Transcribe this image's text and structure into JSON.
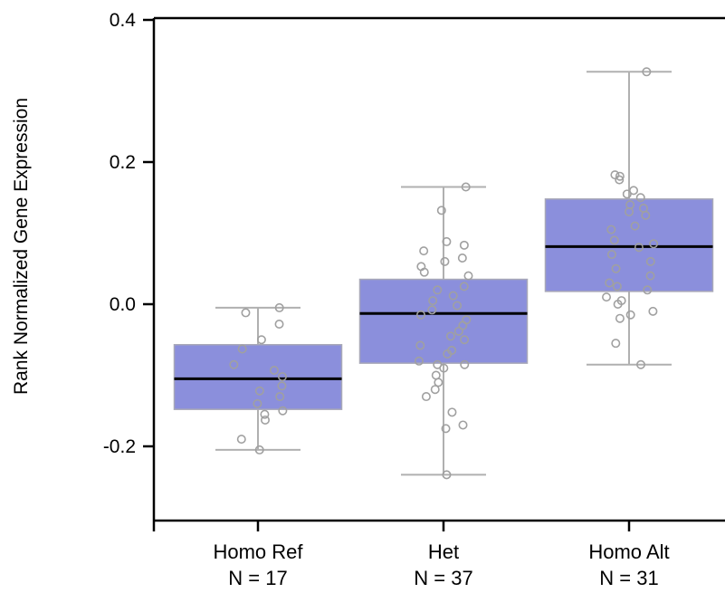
{
  "chart_data": {
    "type": "box",
    "ylabel": "Rank Normalized Gene Expression",
    "xlabel": "",
    "ylim": [
      -0.3,
      0.4
    ],
    "yticks": [
      -0.2,
      0.0,
      0.2,
      0.4
    ],
    "ytick_labels": [
      "-0.2",
      "0.0",
      "0.2",
      "0.4"
    ],
    "grid": false,
    "box_color": "#8b8fdc",
    "box_edge_color": "#a8a8b8",
    "median_color": "#000000",
    "whisker_color": "#b0b0b0",
    "point_color": "#a0a0a0",
    "groups": [
      {
        "name": "Homo Ref",
        "n_label": "N = 17",
        "whisker_low": -0.205,
        "q1": -0.148,
        "median": -0.105,
        "q3": -0.057,
        "whisker_high": -0.005,
        "points": [
          -0.005,
          -0.012,
          -0.028,
          -0.05,
          -0.063,
          -0.085,
          -0.093,
          -0.102,
          -0.115,
          -0.122,
          -0.13,
          -0.14,
          -0.15,
          -0.155,
          -0.163,
          -0.19,
          -0.205
        ]
      },
      {
        "name": "Het",
        "n_label": "N = 37",
        "whisker_low": -0.24,
        "q1": -0.083,
        "median": -0.013,
        "q3": 0.035,
        "whisker_high": 0.165,
        "points": [
          0.165,
          0.132,
          0.088,
          0.083,
          0.075,
          0.065,
          0.06,
          0.053,
          0.045,
          0.04,
          0.025,
          0.02,
          0.012,
          0.005,
          -0.002,
          -0.008,
          -0.015,
          -0.022,
          -0.03,
          -0.038,
          -0.045,
          -0.05,
          -0.058,
          -0.065,
          -0.07,
          -0.08,
          -0.085,
          -0.09,
          -0.1,
          -0.11,
          -0.12,
          -0.13,
          -0.152,
          -0.17,
          -0.175,
          -0.24,
          -0.085
        ]
      },
      {
        "name": "Homo Alt",
        "n_label": "N = 31",
        "whisker_low": -0.085,
        "q1": 0.018,
        "median": 0.081,
        "q3": 0.148,
        "whisker_high": 0.327,
        "points": [
          0.327,
          0.182,
          0.18,
          0.175,
          0.16,
          0.155,
          0.15,
          0.14,
          0.135,
          0.13,
          0.125,
          0.11,
          0.105,
          0.09,
          0.085,
          0.08,
          0.07,
          0.06,
          0.05,
          0.04,
          0.03,
          0.025,
          0.02,
          0.01,
          0.005,
          0.0,
          -0.01,
          -0.015,
          -0.02,
          -0.055,
          -0.085
        ]
      }
    ]
  }
}
